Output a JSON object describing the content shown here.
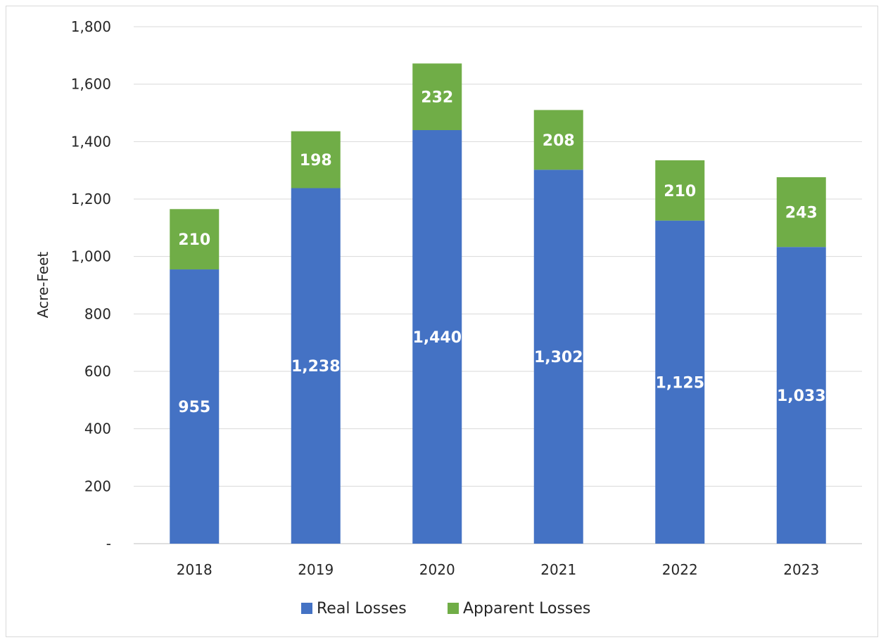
{
  "chart_data": {
    "type": "bar",
    "stacked": true,
    "categories": [
      "2018",
      "2019",
      "2020",
      "2021",
      "2022",
      "2023"
    ],
    "series": [
      {
        "name": "Real Losses",
        "color": "#4472c4",
        "values": [
          955,
          1238,
          1440,
          1302,
          1125,
          1033
        ]
      },
      {
        "name": "Apparent Losses",
        "color": "#70ad47",
        "values": [
          210,
          198,
          232,
          208,
          210,
          243
        ]
      }
    ],
    "data_labels": {
      "Real Losses": [
        "955",
        "1,238",
        "1,440",
        "1,302",
        "1,125",
        "1,033"
      ],
      "Apparent Losses": [
        "210",
        "198",
        "232",
        "208",
        "210",
        "243"
      ]
    },
    "title": "",
    "xlabel": "",
    "ylabel": "Acre-Feet",
    "ylim": [
      0,
      1800
    ],
    "y_ticks": [
      0,
      200,
      400,
      600,
      800,
      1000,
      1200,
      1400,
      1600,
      1800
    ],
    "y_tick_labels": [
      "-",
      "200",
      "400",
      "600",
      "800",
      "1,000",
      "1,200",
      "1,400",
      "1,600",
      "1,800"
    ],
    "grid": true,
    "legend_position": "bottom"
  }
}
